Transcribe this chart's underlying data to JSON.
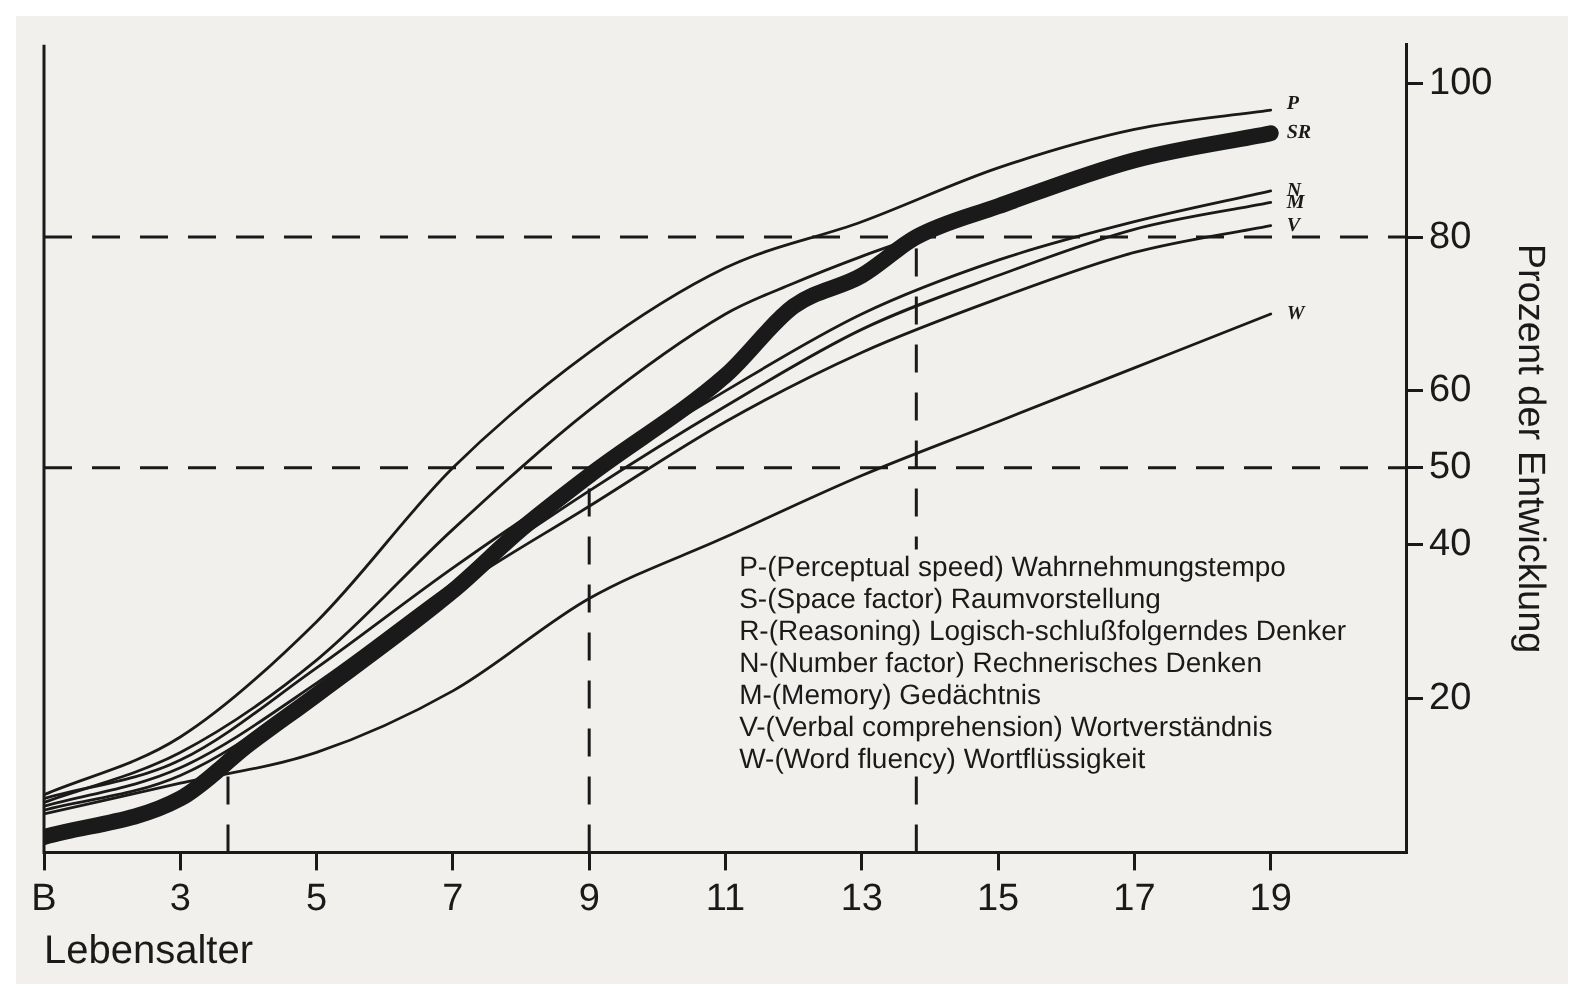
{
  "chart_data": {
    "type": "line",
    "xlabel": "Lebensalter",
    "ylabel": "Prozent der Entwicklung",
    "xlim": [
      1,
      21
    ],
    "ylim": [
      0,
      105
    ],
    "xticks": [
      {
        "value": 1,
        "label": "B"
      },
      3,
      5,
      7,
      9,
      11,
      13,
      15,
      17,
      19
    ],
    "yticks": [
      20,
      40,
      50,
      60,
      80,
      100
    ],
    "grid": false,
    "legend": false,
    "marker": "none",
    "line_style": "solid",
    "series": [
      {
        "name": "P",
        "color": "#1a1a1a",
        "x": [
          1,
          3,
          5,
          7,
          9,
          11,
          13,
          15,
          17,
          19
        ],
        "values": [
          7.5,
          15,
          30,
          50,
          65,
          76,
          82,
          89,
          94,
          96.5
        ]
      },
      {
        "name": "SR",
        "color": "#1a1a1a",
        "x": [
          1,
          3,
          4,
          5,
          7,
          8,
          9,
          11,
          12,
          13,
          13.8,
          15,
          17,
          19
        ],
        "values": [
          2,
          7,
          14,
          20.5,
          34,
          42,
          49,
          62,
          71,
          75,
          80,
          84,
          90,
          93.5
        ]
      },
      {
        "color": "#1a1a1a",
        "x": [
          1,
          3,
          5,
          7,
          9,
          11,
          12,
          13,
          13.8
        ],
        "values": [
          6.5,
          13,
          25,
          42,
          57.5,
          70,
          74,
          77.5,
          80
        ]
      },
      {
        "name": "N",
        "color": "#1a1a1a",
        "x": [
          1,
          3,
          5,
          7,
          9,
          11,
          13,
          15,
          17,
          19
        ],
        "values": [
          7,
          12,
          24,
          37,
          49,
          60,
          70,
          77,
          82,
          86
        ]
      },
      {
        "name": "M",
        "color": "#1a1a1a",
        "x": [
          1,
          3,
          5,
          7,
          9,
          11,
          13,
          15,
          17,
          19
        ],
        "values": [
          6,
          11,
          22,
          35,
          47,
          58,
          68,
          75,
          81,
          84.5
        ]
      },
      {
        "name": "V",
        "color": "#1a1a1a",
        "x": [
          1,
          3,
          5,
          7,
          9,
          11,
          13,
          15,
          17,
          19
        ],
        "values": [
          5.5,
          10,
          21,
          34,
          45,
          56,
          65,
          72,
          78,
          81.5
        ]
      },
      {
        "name": "W",
        "color": "#1a1a1a",
        "x": [
          1,
          3,
          5,
          7,
          9,
          11,
          13,
          15,
          17,
          19
        ],
        "values": [
          5,
          9,
          13,
          21,
          33,
          41,
          49,
          56,
          63,
          70
        ]
      }
    ],
    "ref_lines": [
      {
        "axis": "y",
        "value": 80,
        "line_style": "dashed",
        "color": "#1a1a1a"
      },
      {
        "axis": "y",
        "value": 50,
        "line_style": "dashed",
        "color": "#1a1a1a"
      },
      {
        "axis": "x",
        "value": 3.7,
        "line_style": "dashed",
        "color": "#1a1a1a"
      },
      {
        "axis": "x",
        "value": 9,
        "line_style": "dashed",
        "color": "#1a1a1a"
      },
      {
        "axis": "x",
        "value": 13.8,
        "line_style": "dashed",
        "color": "#1a1a1a"
      }
    ],
    "annotations": [
      "P-(Perceptual speed) Wahrnehmungstempo",
      "S-(Space factor) Raumvorstellung",
      "R-(Reasoning) Logisch-schlußfolgerndes Denker",
      "N-(Number factor) Rechnerisches Denken",
      "M-(Memory) Gedächtnis",
      "V-(Verbal comprehension) Wortverständnis",
      "W-(Word fluency) Wortflüssigkeit"
    ]
  }
}
